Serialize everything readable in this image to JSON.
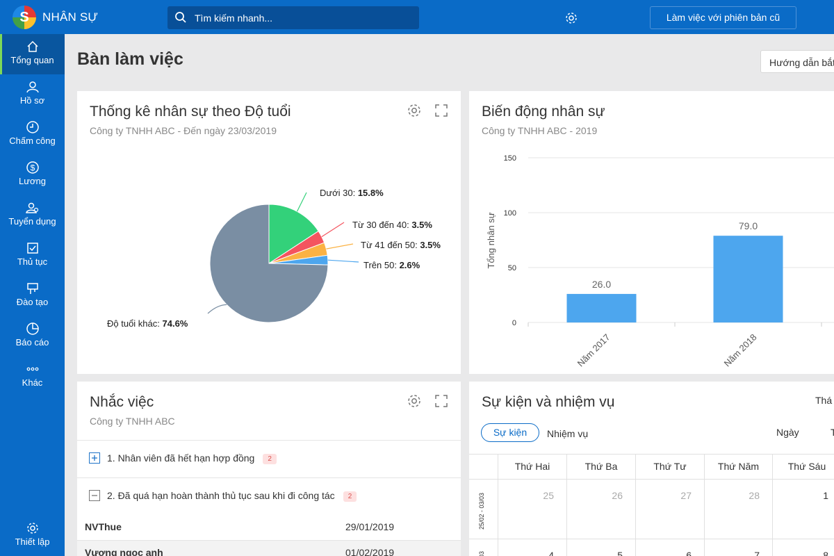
{
  "app": {
    "name": "NHÂN SỰ"
  },
  "search": {
    "placeholder": "Tìm kiếm nhanh..."
  },
  "header": {
    "old_version_button": "Làm việc với phiên bản cũ"
  },
  "sidebar": {
    "items": [
      {
        "label": "Tổng quan",
        "icon": "home-icon"
      },
      {
        "label": "Hồ sơ",
        "icon": "user-icon"
      },
      {
        "label": "Chấm công",
        "icon": "clock-icon"
      },
      {
        "label": "Lương",
        "icon": "dollar-icon"
      },
      {
        "label": "Tuyển dụng",
        "icon": "recruit-icon"
      },
      {
        "label": "Thủ tục",
        "icon": "checklist-icon"
      },
      {
        "label": "Đào tạo",
        "icon": "training-icon"
      },
      {
        "label": "Báo cáo",
        "icon": "pie-chart-icon"
      },
      {
        "label": "Khác",
        "icon": "more-icon"
      }
    ],
    "settings_label": "Thiết lập"
  },
  "page": {
    "title": "Bàn làm việc",
    "guide_button": "Hướng dẫn bắt đầu"
  },
  "age_card": {
    "title": "Thống kê nhân sự theo Độ tuổi",
    "subtitle": "Công ty TNHH ABC - Đến ngày 23/03/2019",
    "labels": [
      {
        "name": "Dưới 30",
        "value": "15.8%"
      },
      {
        "name": "Từ 30 đến 40",
        "value": "3.5%"
      },
      {
        "name": "Từ 41 đến 50",
        "value": "3.5%"
      },
      {
        "name": "Trên 50",
        "value": "2.6%"
      },
      {
        "name": "Độ tuổi khác",
        "value": "74.6%"
      }
    ]
  },
  "staff_card": {
    "title": "Biến động nhân sự",
    "subtitle": "Công ty TNHH ABC - 2019"
  },
  "reminder_card": {
    "title": "Nhắc việc",
    "subtitle": "Công ty TNHH ABC",
    "groups": [
      {
        "label": "1. Nhân viên đã hết hạn hợp đồng",
        "count": "2"
      },
      {
        "label": "2. Đã quá hạn hoàn thành thủ tục sau khi đi công tác",
        "count": "2"
      }
    ],
    "rows": [
      {
        "name": "NVThue",
        "date": "29/01/2019"
      },
      {
        "name": "Vương ngọc anh",
        "date": "01/02/2019"
      }
    ]
  },
  "events_card": {
    "title": "Sự kiện và nhiệm vụ",
    "tabs": [
      "Sự kiện",
      "Nhiệm vụ"
    ],
    "month_label": "Thá",
    "day_label": "Ngày",
    "week_label": "T",
    "weekdays": [
      "Thứ Hai",
      "Thứ Ba",
      "Thứ Tư",
      "Thứ Năm",
      "Thứ Sáu"
    ],
    "weeks": [
      {
        "range": "25/02 - 03/03",
        "days": [
          "25",
          "26",
          "27",
          "28",
          "1"
        ]
      },
      {
        "range": "03",
        "days": [
          "4",
          "5",
          "6",
          "7",
          "8"
        ]
      }
    ]
  },
  "colors": {
    "primary": "#0a6bc7",
    "bar": "#4da6ee",
    "pie_main": "#7a8ea3"
  },
  "chart_data": [
    {
      "type": "pie",
      "title": "Thống kê nhân sự theo Độ tuổi",
      "subtitle": "Công ty TNHH ABC - Đến ngày 23/03/2019",
      "categories": [
        "Dưới 30",
        "Từ 30 đến 40",
        "Từ 41 đến 50",
        "Trên 50",
        "Độ tuổi khác"
      ],
      "values": [
        15.8,
        3.5,
        3.5,
        2.6,
        74.6
      ],
      "colors": [
        "#33d17a",
        "#f4545f",
        "#fbb244",
        "#4da6ee",
        "#7a8ea3"
      ]
    },
    {
      "type": "bar",
      "title": "Biến động nhân sự",
      "subtitle": "Công ty TNHH ABC - 2019",
      "categories": [
        "Năm 2017",
        "Năm 2018"
      ],
      "values": [
        26.0,
        79.0
      ],
      "value_labels": [
        "26.0",
        "79.0"
      ],
      "ylabel": "Tổng nhân sự",
      "ylim": [
        0,
        150
      ],
      "yticks": [
        "0",
        "50",
        "100",
        "150"
      ],
      "grid": true
    }
  ]
}
